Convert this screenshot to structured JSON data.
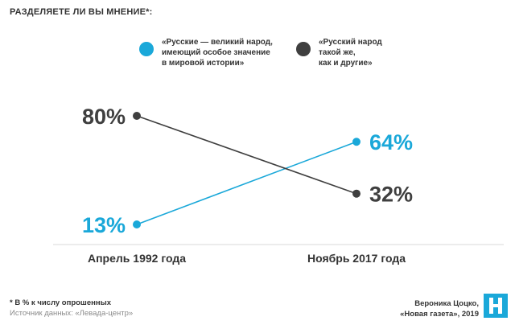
{
  "title": "РАЗДЕЛЯЕТЕ ЛИ ВЫ МНЕНИЕ*:",
  "colors": {
    "series_1": "#1aa8d9",
    "series_2": "#3f3f3f",
    "baseline": "#d9d9d9",
    "logo": "#1aa8d9"
  },
  "chart_data": {
    "type": "line",
    "categories": [
      "Апрель 1992 года",
      "Ноябрь 2017 года"
    ],
    "series": [
      {
        "name": "«Русские — великий народ,\nимеющий особое значение\nв мировой истории»",
        "values": [
          13,
          64
        ],
        "labels": [
          "13%",
          "64%"
        ]
      },
      {
        "name": "«Русский народ\nтакой же,\nкак и другие»",
        "values": [
          80,
          32
        ],
        "labels": [
          "80%",
          "32%"
        ]
      }
    ],
    "unit": "%",
    "grid": false,
    "legend_position": "top"
  },
  "footer": {
    "note": "* В % к числу опрошенных",
    "source": "Источник данных: «Левада-центр»",
    "credit_line_1": "Вероника Цоцко,",
    "credit_line_2": "«Новая газета», 2019",
    "logo_icon": "novaya-gazeta-logo-icon"
  }
}
